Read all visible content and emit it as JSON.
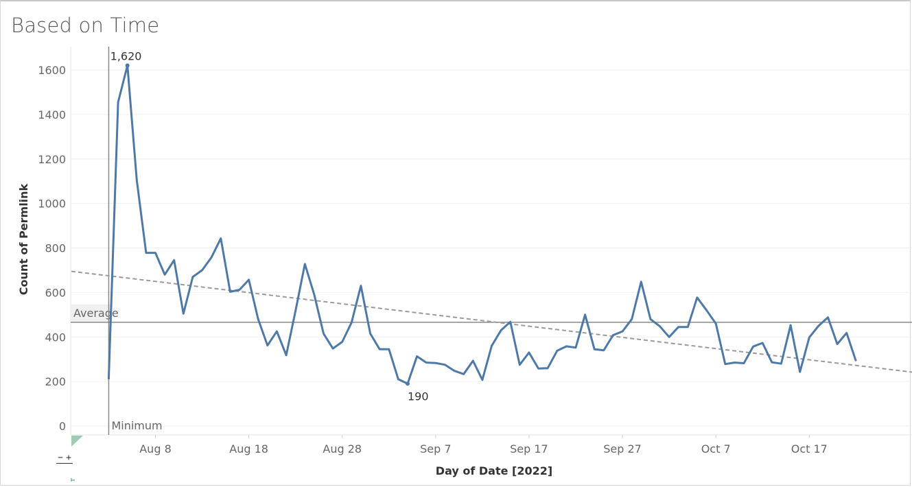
{
  "title": "Based on Time",
  "chart_data": {
    "type": "line",
    "xlabel": "Day of Date [2022]",
    "ylabel": "Count of Permlink",
    "ylim": [
      0,
      1700
    ],
    "y_ticks": [
      0,
      200,
      400,
      600,
      800,
      1000,
      1200,
      1400,
      1600
    ],
    "x_ticks": [
      {
        "label": "Aug 8",
        "date": "2022-08-08"
      },
      {
        "label": "Aug 18",
        "date": "2022-08-18"
      },
      {
        "label": "Aug 28",
        "date": "2022-08-28"
      },
      {
        "label": "Sep 7",
        "date": "2022-09-07"
      },
      {
        "label": "Sep 17",
        "date": "2022-09-17"
      },
      {
        "label": "Sep 27",
        "date": "2022-09-27"
      },
      {
        "label": "Oct 7",
        "date": "2022-10-07"
      },
      {
        "label": "Oct 17",
        "date": "2022-10-17"
      }
    ],
    "x_range": [
      "2022-07-30",
      "2022-10-28"
    ],
    "grid": "horizontal",
    "series": [
      {
        "color": "#4e79a7",
        "points": [
          [
            "2022-08-03",
            210
          ],
          [
            "2022-08-04",
            1455
          ],
          [
            "2022-08-05",
            1620
          ],
          [
            "2022-08-06",
            1105
          ],
          [
            "2022-08-07",
            778
          ],
          [
            "2022-08-08",
            778
          ],
          [
            "2022-08-09",
            680
          ],
          [
            "2022-08-10",
            745
          ],
          [
            "2022-08-11",
            505
          ],
          [
            "2022-08-12",
            670
          ],
          [
            "2022-08-13",
            700
          ],
          [
            "2022-08-14",
            758
          ],
          [
            "2022-08-15",
            843
          ],
          [
            "2022-08-16",
            603
          ],
          [
            "2022-08-17",
            612
          ],
          [
            "2022-08-18",
            657
          ],
          [
            "2022-08-19",
            480
          ],
          [
            "2022-08-20",
            362
          ],
          [
            "2022-08-21",
            425
          ],
          [
            "2022-08-22",
            318
          ],
          [
            "2022-08-23",
            518
          ],
          [
            "2022-08-24",
            728
          ],
          [
            "2022-08-25",
            590
          ],
          [
            "2022-08-26",
            415
          ],
          [
            "2022-08-27",
            348
          ],
          [
            "2022-08-28",
            378
          ],
          [
            "2022-08-29",
            465
          ],
          [
            "2022-08-30",
            630
          ],
          [
            "2022-08-31",
            415
          ],
          [
            "2022-09-01",
            345
          ],
          [
            "2022-09-02",
            345
          ],
          [
            "2022-09-03",
            210
          ],
          [
            "2022-09-04",
            190
          ],
          [
            "2022-09-05",
            313
          ],
          [
            "2022-09-06",
            285
          ],
          [
            "2022-09-07",
            283
          ],
          [
            "2022-09-08",
            275
          ],
          [
            "2022-09-09",
            248
          ],
          [
            "2022-09-10",
            233
          ],
          [
            "2022-09-11",
            293
          ],
          [
            "2022-09-12",
            207
          ],
          [
            "2022-09-13",
            360
          ],
          [
            "2022-09-14",
            430
          ],
          [
            "2022-09-15",
            468
          ],
          [
            "2022-09-16",
            275
          ],
          [
            "2022-09-17",
            330
          ],
          [
            "2022-09-18",
            258
          ],
          [
            "2022-09-19",
            260
          ],
          [
            "2022-09-20",
            338
          ],
          [
            "2022-09-21",
            358
          ],
          [
            "2022-09-22",
            352
          ],
          [
            "2022-09-23",
            500
          ],
          [
            "2022-09-24",
            345
          ],
          [
            "2022-09-25",
            340
          ],
          [
            "2022-09-26",
            408
          ],
          [
            "2022-09-27",
            425
          ],
          [
            "2022-09-28",
            480
          ],
          [
            "2022-09-29",
            648
          ],
          [
            "2022-09-30",
            480
          ],
          [
            "2022-10-01",
            448
          ],
          [
            "2022-10-02",
            400
          ],
          [
            "2022-10-03",
            445
          ],
          [
            "2022-10-04",
            445
          ],
          [
            "2022-10-05",
            577
          ],
          [
            "2022-10-06",
            520
          ],
          [
            "2022-10-07",
            460
          ],
          [
            "2022-10-08",
            278
          ],
          [
            "2022-10-09",
            285
          ],
          [
            "2022-10-10",
            282
          ],
          [
            "2022-10-11",
            357
          ],
          [
            "2022-10-12",
            373
          ],
          [
            "2022-10-13",
            286
          ],
          [
            "2022-10-14",
            280
          ],
          [
            "2022-10-15",
            453
          ],
          [
            "2022-10-16",
            243
          ],
          [
            "2022-10-17",
            398
          ],
          [
            "2022-10-18",
            450
          ],
          [
            "2022-10-19",
            488
          ],
          [
            "2022-10-20",
            368
          ],
          [
            "2022-10-21",
            418
          ],
          [
            "2022-10-22",
            292
          ]
        ]
      }
    ],
    "trend_line": {
      "from": [
        "2022-07-30",
        695
      ],
      "to": [
        "2022-10-28",
        242
      ],
      "style": "dashed",
      "color": "#999999"
    },
    "reference_lines": [
      {
        "label": "Average",
        "value": 466,
        "axis": "y",
        "color": "#888888"
      },
      {
        "label": "Minimum",
        "value": "2022-08-03",
        "axis": "x",
        "color": "#888888"
      }
    ],
    "annotations": [
      {
        "text": "1,620",
        "date": "2022-08-05",
        "value": 1620,
        "position": "above"
      },
      {
        "text": "190",
        "date": "2022-09-04",
        "value": 190,
        "position": "below"
      }
    ]
  }
}
